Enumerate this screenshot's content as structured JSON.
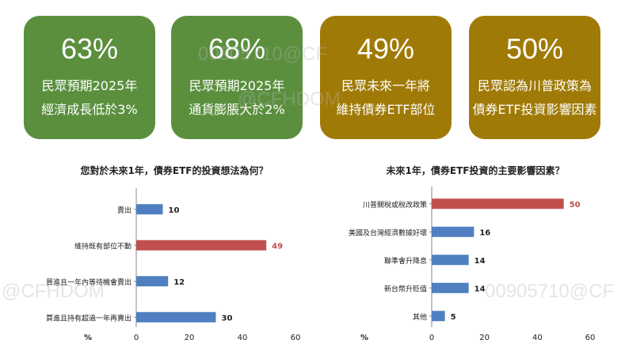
{
  "cards": [
    {
      "value": "63%",
      "line1": "民眾預期2025年",
      "line2": "經濟成長低於3%",
      "color": "#5b8f3e"
    },
    {
      "value": "68%",
      "line1": "民眾預期2025年",
      "line2": "通貨膨脹大於2%",
      "color": "#5b8f3e"
    },
    {
      "value": "49%",
      "line1": "民眾未來一年將",
      "line2": "維持債券ETF部位",
      "color": "#a07a06"
    },
    {
      "value": "50%",
      "line1": "民眾認為川普政策為",
      "line2": "債券ETF投資影響因素",
      "color": "#a07a06"
    }
  ],
  "watermarks": [
    "@CFHDOM",
    "00905710@CF",
    "@CFHDOM",
    "00905710@CF"
  ],
  "chart_data": [
    {
      "type": "bar",
      "orientation": "horizontal",
      "title": "您對於未來1年，債券ETF的投資想法為何？",
      "categories": [
        "賣出",
        "維持既有部位不動",
        "買進且一年內等待機會賣出",
        "買進且持有超過一年再賣出"
      ],
      "values": [
        10,
        49,
        12,
        30
      ],
      "highlight_index": 1,
      "xlabel": "%",
      "xlim": [
        0,
        60
      ],
      "xticks": [
        0,
        20,
        40,
        60
      ],
      "grid": false,
      "bar_color": "#4f7fc0",
      "highlight_color": "#c0504d"
    },
    {
      "type": "bar",
      "orientation": "horizontal",
      "title": "未來1年，債券ETF投資的主要影響因素？",
      "categories": [
        "川普關稅或稅改政策",
        "美國及台灣經濟數據好壞",
        "聯準會升降息",
        "新台幣升貶值",
        "其他"
      ],
      "values": [
        50,
        16,
        14,
        14,
        5
      ],
      "highlight_index": 0,
      "xlabel": "%",
      "xlim": [
        0,
        60
      ],
      "xticks": [
        0,
        20,
        40,
        60
      ],
      "grid": false,
      "bar_color": "#4f7fc0",
      "highlight_color": "#c0504d"
    }
  ]
}
